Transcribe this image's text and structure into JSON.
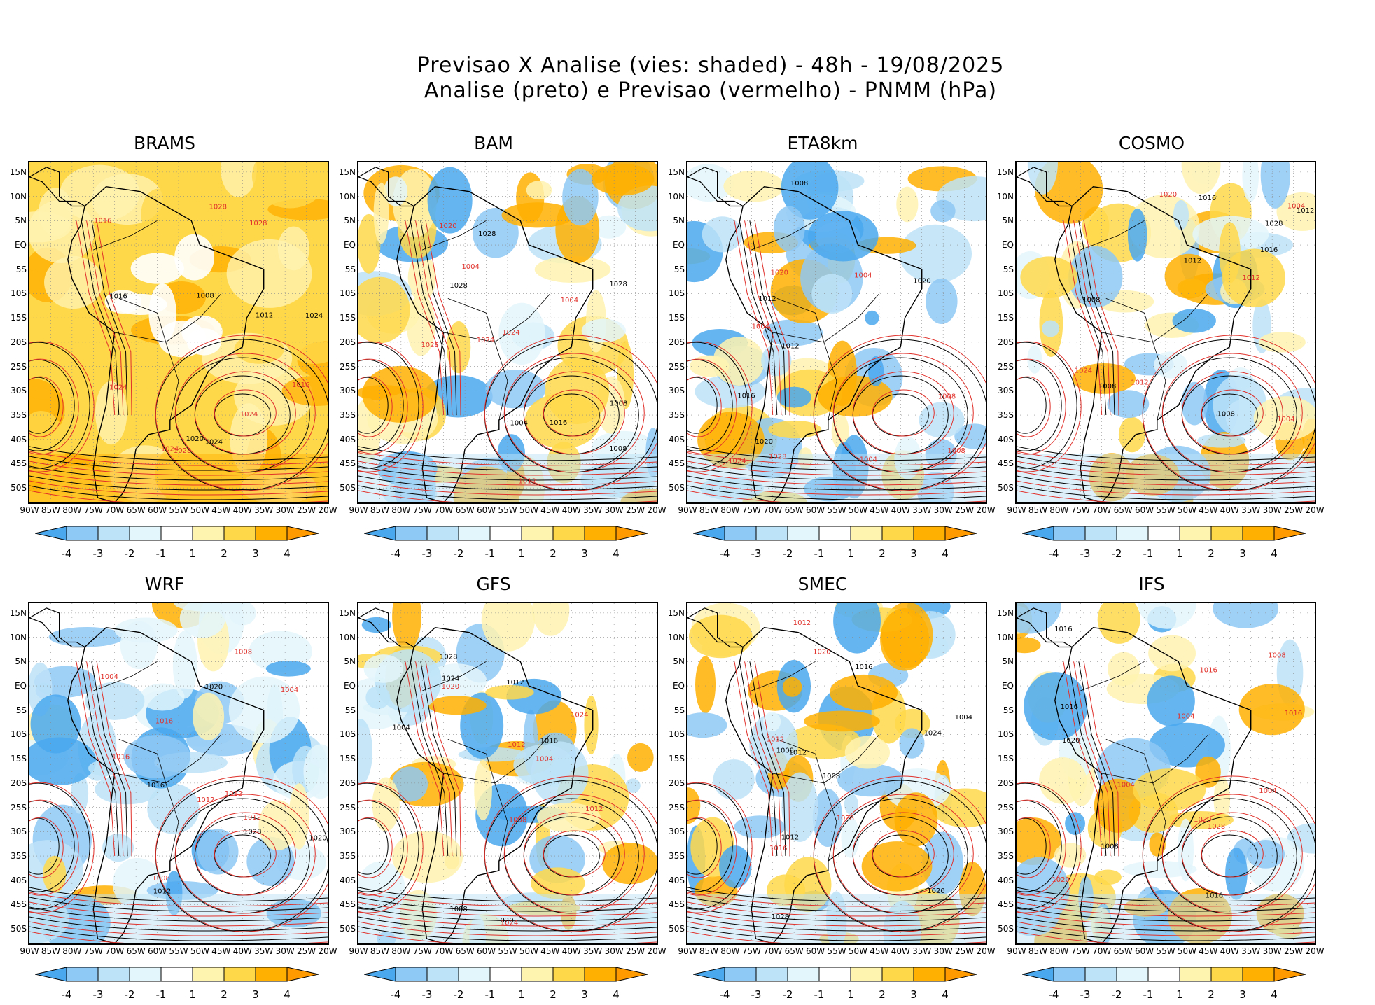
{
  "title": {
    "line1": "Previsao X Analise (vies: shaded) - 48h - 19/08/2025",
    "line2": "Analise (preto) e Previsao (vermelho) - PNMM (hPa)"
  },
  "lat_labels": [
    "15N",
    "10N",
    "5N",
    "EQ",
    "5S",
    "10S",
    "15S",
    "20S",
    "25S",
    "30S",
    "35S",
    "40S",
    "45S",
    "50S"
  ],
  "lon_labels": [
    "90W",
    "85W",
    "80W",
    "75W",
    "70W",
    "65W",
    "60W",
    "55W",
    "50W",
    "45W",
    "40W",
    "35W",
    "30W",
    "25W",
    "20W"
  ],
  "colorbar": {
    "labels": [
      "-4",
      "-3",
      "-2",
      "-1",
      "1",
      "2",
      "3",
      "4"
    ],
    "colors": [
      "#4aa8ee",
      "#8ec8f4",
      "#bde3f8",
      "#e3f6fb",
      "#ffffff",
      "#fff3b0",
      "#ffd84a",
      "#ffb000",
      "#ff9a00"
    ]
  },
  "panels": [
    {
      "name": "BRAMS",
      "bias": "warm"
    },
    {
      "name": "BAM",
      "bias": "mixed"
    },
    {
      "name": "ETA8km",
      "bias": "cool"
    },
    {
      "name": "COSMO",
      "bias": "mixed"
    },
    {
      "name": "WRF",
      "bias": "cool"
    },
    {
      "name": "GFS",
      "bias": "mixed"
    },
    {
      "name": "SMEC",
      "bias": "mixed"
    },
    {
      "name": "IFS",
      "bias": "mixed"
    }
  ],
  "contour_labels": [
    "1004",
    "1008",
    "1012",
    "1016",
    "1020",
    "1024",
    "1028"
  ]
}
